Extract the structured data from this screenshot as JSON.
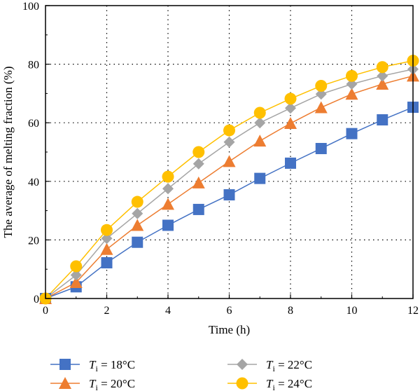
{
  "chart_data": {
    "type": "line",
    "title": "",
    "xlabel": "Time (h)",
    "ylabel": "The average of melting fraction (%)",
    "xlim": [
      0,
      12
    ],
    "ylim": [
      0,
      100
    ],
    "xticks": [
      "0",
      "2",
      "4",
      "6",
      "8",
      "10",
      "12"
    ],
    "yticks": [
      "0",
      "20",
      "40",
      "60",
      "80",
      "100"
    ],
    "grid": true,
    "x": [
      0,
      1,
      2,
      3,
      4,
      5,
      6,
      7,
      8,
      9,
      10,
      11,
      12
    ],
    "series": [
      {
        "name": "T_i = 18°C",
        "name_main": "T",
        "name_sub": "i",
        "name_rest": " = 18°C",
        "marker": "square",
        "color": "#4472C4",
        "values": [
          0,
          4,
          12.2,
          19.2,
          25,
          30.4,
          35.4,
          41,
          46.2,
          51.2,
          56.3,
          61,
          65.3
        ]
      },
      {
        "name": "T_i = 20°C",
        "name_main": "T",
        "name_sub": "i",
        "name_rest": " = 20°C",
        "marker": "triangle",
        "color": "#ED7D31",
        "values": [
          0,
          5.5,
          16.8,
          25,
          32.2,
          39.5,
          46.8,
          53.8,
          59.8,
          65.2,
          69.8,
          73.2,
          76
        ]
      },
      {
        "name": "T_i = 22°C",
        "name_main": "T",
        "name_sub": "i",
        "name_rest": " = 22°C",
        "marker": "diamond",
        "color": "#A5A5A5",
        "values": [
          0,
          8,
          20.5,
          29,
          37.5,
          46,
          53.4,
          60,
          65,
          69.8,
          73.2,
          76,
          78.3
        ]
      },
      {
        "name": "T_i = 24°C",
        "name_main": "T",
        "name_sub": "i",
        "name_rest": " = 24°C",
        "marker": "circle",
        "color": "#FFC000",
        "values": [
          0,
          11,
          23.4,
          33,
          41.6,
          50,
          57.4,
          63.4,
          68.2,
          72.6,
          76,
          79,
          81.2
        ]
      }
    ]
  }
}
